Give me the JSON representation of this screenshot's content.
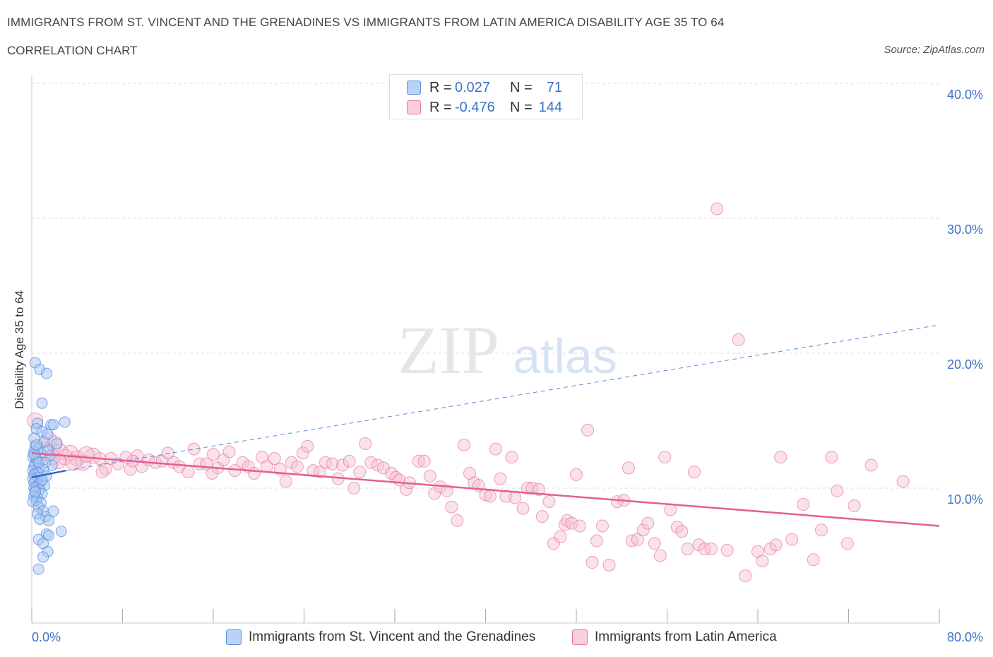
{
  "header": {
    "title": "IMMIGRANTS FROM ST. VINCENT AND THE GRENADINES VS IMMIGRANTS FROM LATIN AMERICA DISABILITY AGE 35 TO 64",
    "subtitle": "CORRELATION CHART",
    "source": "Source: ZipAtlas.com"
  },
  "legend_top": {
    "rows": [
      {
        "r_label": "R =",
        "r_value": "0.027",
        "n_label": "N =",
        "n_value": "71"
      },
      {
        "r_label": "R =",
        "r_value": "-0.476",
        "n_label": "N =",
        "n_value": "144"
      }
    ]
  },
  "legend_bottom": {
    "items": [
      {
        "label": "Immigrants from St. Vincent and the Grenadines"
      },
      {
        "label": "Immigrants from Latin America"
      }
    ]
  },
  "watermark": {
    "zip": "ZIP",
    "atlas": "atlas"
  },
  "colors": {
    "blue": "#5b8fe0",
    "blue_fill": "#a8c6f2",
    "blue_line": "#2e6bd1",
    "pink": "#e8779f",
    "pink_fill": "#f5bfd2",
    "pink_line": "#e35f90",
    "axis_text": "#3b73c7",
    "grid": "#dddddd"
  },
  "chart_data": {
    "type": "scatter",
    "title": "IMMIGRANTS FROM ST. VINCENT AND THE GRENADINES VS IMMIGRANTS FROM LATIN AMERICA DISABILITY AGE 35 TO 64",
    "xlabel": "",
    "ylabel": "Disability Age 35 to 64",
    "xlim": [
      0,
      80
    ],
    "ylim": [
      0,
      40
    ],
    "x_tick_labels": [
      "0.0%",
      "80.0%"
    ],
    "y_ticks": [
      10,
      20,
      30,
      40
    ],
    "y_tick_labels": [
      "10.0%",
      "20.0%",
      "30.0%",
      "40.0%"
    ],
    "grid": true,
    "legend_position": "top-center",
    "series": [
      {
        "name": "Immigrants from St. Vincent and the Grenadines",
        "color": "#5b8fe0",
        "trend": {
          "x": [
            0,
            3
          ],
          "y": [
            10.8,
            11.3
          ],
          "extended_to": [
            80,
            22.1
          ]
        },
        "points": [
          [
            0.3,
            19.3
          ],
          [
            0.7,
            18.8
          ],
          [
            1.3,
            18.5
          ],
          [
            0.9,
            16.3
          ],
          [
            2.9,
            14.9
          ],
          [
            0.5,
            14.8
          ],
          [
            1.7,
            14.7
          ],
          [
            1.9,
            14.7
          ],
          [
            0.4,
            14.4
          ],
          [
            0.9,
            14.2
          ],
          [
            1.4,
            14.0
          ],
          [
            0.2,
            13.7
          ],
          [
            1.1,
            13.4
          ],
          [
            2.2,
            13.3
          ],
          [
            0.3,
            13.1
          ],
          [
            0.6,
            12.9
          ],
          [
            0.2,
            12.7
          ],
          [
            0.8,
            12.6
          ],
          [
            1.6,
            12.4
          ],
          [
            0.1,
            12.3
          ],
          [
            0.4,
            12.2
          ],
          [
            0.5,
            12.0
          ],
          [
            1.2,
            11.9
          ],
          [
            0.3,
            11.8
          ],
          [
            1.8,
            11.7
          ],
          [
            0.2,
            11.6
          ],
          [
            0.7,
            11.5
          ],
          [
            1.0,
            11.4
          ],
          [
            0.1,
            11.3
          ],
          [
            0.4,
            11.2
          ],
          [
            0.6,
            11.1
          ],
          [
            0.2,
            11.0
          ],
          [
            1.3,
            10.9
          ],
          [
            0.5,
            10.8
          ],
          [
            0.1,
            10.7
          ],
          [
            0.3,
            10.6
          ],
          [
            0.8,
            10.5
          ],
          [
            0.2,
            10.4
          ],
          [
            0.6,
            10.3
          ],
          [
            1.1,
            10.2
          ],
          [
            0.4,
            10.1
          ],
          [
            0.2,
            10.0
          ],
          [
            0.7,
            9.9
          ],
          [
            0.3,
            9.8
          ],
          [
            0.9,
            9.6
          ],
          [
            0.2,
            9.4
          ],
          [
            0.5,
            9.3
          ],
          [
            0.4,
            9.1
          ],
          [
            0.1,
            9.0
          ],
          [
            0.8,
            8.9
          ],
          [
            0.6,
            8.6
          ],
          [
            1.0,
            8.3
          ],
          [
            1.9,
            8.3
          ],
          [
            0.5,
            8.1
          ],
          [
            1.2,
            7.9
          ],
          [
            0.7,
            7.7
          ],
          [
            1.5,
            7.6
          ],
          [
            2.6,
            6.8
          ],
          [
            1.3,
            6.6
          ],
          [
            1.5,
            6.5
          ],
          [
            0.6,
            6.2
          ],
          [
            1.0,
            5.9
          ],
          [
            1.4,
            5.3
          ],
          [
            1.0,
            4.9
          ],
          [
            0.6,
            4.0
          ],
          [
            0.2,
            12.5
          ],
          [
            0.9,
            10.6
          ],
          [
            0.3,
            9.7
          ],
          [
            0.6,
            11.9
          ],
          [
            1.4,
            12.8
          ],
          [
            0.4,
            13.2
          ]
        ]
      },
      {
        "name": "Immigrants from Latin America",
        "color": "#e8779f",
        "trend": {
          "x": [
            0,
            80
          ],
          "y": [
            12.6,
            7.2
          ]
        },
        "points": [
          [
            0.3,
            15.0
          ],
          [
            1.5,
            13.6
          ],
          [
            2.0,
            13.3
          ],
          [
            1.3,
            12.8
          ],
          [
            2.5,
            12.7
          ],
          [
            3.4,
            12.6
          ],
          [
            2.9,
            12.3
          ],
          [
            1.8,
            12.3
          ],
          [
            4.0,
            12.2
          ],
          [
            4.5,
            11.9
          ],
          [
            5.4,
            12.4
          ],
          [
            6.0,
            12.2
          ],
          [
            6.5,
            11.4
          ],
          [
            7.0,
            12.2
          ],
          [
            7.6,
            11.8
          ],
          [
            8.3,
            12.3
          ],
          [
            8.7,
            11.4
          ],
          [
            9.3,
            12.4
          ],
          [
            9.7,
            11.6
          ],
          [
            10.3,
            12.1
          ],
          [
            10.9,
            11.9
          ],
          [
            11.5,
            12.0
          ],
          [
            12.0,
            12.6
          ],
          [
            12.5,
            11.9
          ],
          [
            13.0,
            11.6
          ],
          [
            13.8,
            11.2
          ],
          [
            14.3,
            12.9
          ],
          [
            14.8,
            11.8
          ],
          [
            15.4,
            11.8
          ],
          [
            16.0,
            12.5
          ],
          [
            16.4,
            11.5
          ],
          [
            16.9,
            12.1
          ],
          [
            17.4,
            12.7
          ],
          [
            17.9,
            11.3
          ],
          [
            18.6,
            11.9
          ],
          [
            19.1,
            11.6
          ],
          [
            19.6,
            11.1
          ],
          [
            20.3,
            12.3
          ],
          [
            20.7,
            11.6
          ],
          [
            21.4,
            12.2
          ],
          [
            21.9,
            11.4
          ],
          [
            22.4,
            10.5
          ],
          [
            22.9,
            11.9
          ],
          [
            23.4,
            11.6
          ],
          [
            23.9,
            12.6
          ],
          [
            24.3,
            13.1
          ],
          [
            24.8,
            11.3
          ],
          [
            25.4,
            11.2
          ],
          [
            25.9,
            11.9
          ],
          [
            26.5,
            11.8
          ],
          [
            27.0,
            10.7
          ],
          [
            27.4,
            11.7
          ],
          [
            28.0,
            12.0
          ],
          [
            28.4,
            10.0
          ],
          [
            28.9,
            11.2
          ],
          [
            29.4,
            13.3
          ],
          [
            29.9,
            11.9
          ],
          [
            30.5,
            11.7
          ],
          [
            31.0,
            11.5
          ],
          [
            31.7,
            11.1
          ],
          [
            32.1,
            10.8
          ],
          [
            32.4,
            10.6
          ],
          [
            33.0,
            9.9
          ],
          [
            33.3,
            10.4
          ],
          [
            34.1,
            12.0
          ],
          [
            34.6,
            12.0
          ],
          [
            35.1,
            10.9
          ],
          [
            35.5,
            9.6
          ],
          [
            36.0,
            10.1
          ],
          [
            36.6,
            9.8
          ],
          [
            37.0,
            8.6
          ],
          [
            37.5,
            7.6
          ],
          [
            38.1,
            13.2
          ],
          [
            38.6,
            11.1
          ],
          [
            39.0,
            10.4
          ],
          [
            39.4,
            10.2
          ],
          [
            40.0,
            9.5
          ],
          [
            40.4,
            9.4
          ],
          [
            40.9,
            12.9
          ],
          [
            41.3,
            10.7
          ],
          [
            41.8,
            9.4
          ],
          [
            42.3,
            12.3
          ],
          [
            42.6,
            9.3
          ],
          [
            43.3,
            8.5
          ],
          [
            43.7,
            10.0
          ],
          [
            44.1,
            10.0
          ],
          [
            44.7,
            9.9
          ],
          [
            45.0,
            7.9
          ],
          [
            45.6,
            9.0
          ],
          [
            46.0,
            5.9
          ],
          [
            46.6,
            6.4
          ],
          [
            47.0,
            7.3
          ],
          [
            47.2,
            7.6
          ],
          [
            47.6,
            7.4
          ],
          [
            48.0,
            11.0
          ],
          [
            48.3,
            7.2
          ],
          [
            49.0,
            14.3
          ],
          [
            49.4,
            4.5
          ],
          [
            49.8,
            6.1
          ],
          [
            50.3,
            7.2
          ],
          [
            50.9,
            4.3
          ],
          [
            51.6,
            9.0
          ],
          [
            52.2,
            9.1
          ],
          [
            52.6,
            11.5
          ],
          [
            52.9,
            6.1
          ],
          [
            53.4,
            6.2
          ],
          [
            53.9,
            6.9
          ],
          [
            54.3,
            7.4
          ],
          [
            54.9,
            5.9
          ],
          [
            55.4,
            5.0
          ],
          [
            55.8,
            12.3
          ],
          [
            56.3,
            8.4
          ],
          [
            56.9,
            7.1
          ],
          [
            57.3,
            6.8
          ],
          [
            57.8,
            5.5
          ],
          [
            58.4,
            11.2
          ],
          [
            58.8,
            5.8
          ],
          [
            59.3,
            5.5
          ],
          [
            59.9,
            5.5
          ],
          [
            60.4,
            30.7
          ],
          [
            61.3,
            5.4
          ],
          [
            62.3,
            21.0
          ],
          [
            62.9,
            3.5
          ],
          [
            64.0,
            5.3
          ],
          [
            64.4,
            4.6
          ],
          [
            65.1,
            5.5
          ],
          [
            65.6,
            5.8
          ],
          [
            66.0,
            12.3
          ],
          [
            67.0,
            6.2
          ],
          [
            68.0,
            8.8
          ],
          [
            68.9,
            4.7
          ],
          [
            69.6,
            6.9
          ],
          [
            70.5,
            12.3
          ],
          [
            71.0,
            9.8
          ],
          [
            71.9,
            5.9
          ],
          [
            72.5,
            8.7
          ],
          [
            74.0,
            11.7
          ],
          [
            76.8,
            10.5
          ],
          [
            2.3,
            12.0
          ],
          [
            4.8,
            12.5
          ],
          [
            6.2,
            11.2
          ],
          [
            3.7,
            11.9
          ],
          [
            8.9,
            12.0
          ],
          [
            15.9,
            11.1
          ]
        ]
      }
    ]
  }
}
